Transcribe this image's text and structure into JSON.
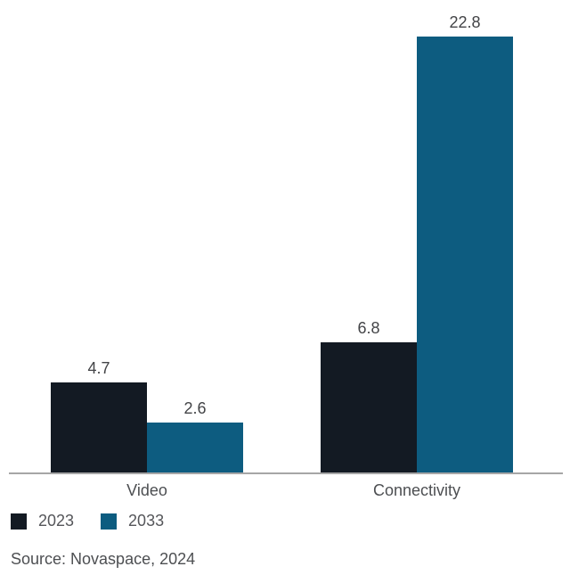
{
  "chart_data": {
    "type": "bar",
    "categories": [
      "Video",
      "Connectivity"
    ],
    "series": [
      {
        "name": "2023",
        "color": "#131a23",
        "values": [
          4.7,
          6.8
        ]
      },
      {
        "name": "2033",
        "color": "#0d5c80",
        "values": [
          2.6,
          22.8
        ]
      }
    ],
    "title": "",
    "xlabel": "",
    "ylabel": "",
    "ylim": [
      0,
      24
    ],
    "grid": false,
    "legend_position": "bottom-left",
    "value_labels": true,
    "value_label_texts": [
      [
        "4.7",
        "6.8"
      ],
      [
        "2.6",
        "22.8"
      ]
    ]
  },
  "legend": {
    "items": [
      {
        "label": "2023",
        "color": "#131a23"
      },
      {
        "label": "2033",
        "color": "#0d5c80"
      }
    ]
  },
  "source": {
    "text": "Source: Novaspace, 2024"
  },
  "colors": {
    "background": "#ffffff",
    "axis_line": "#a6a6a6",
    "value_label": "#434447",
    "category_label": "#4d4f52",
    "legend_text": "#55565a",
    "source_text": "#4d4f52"
  }
}
